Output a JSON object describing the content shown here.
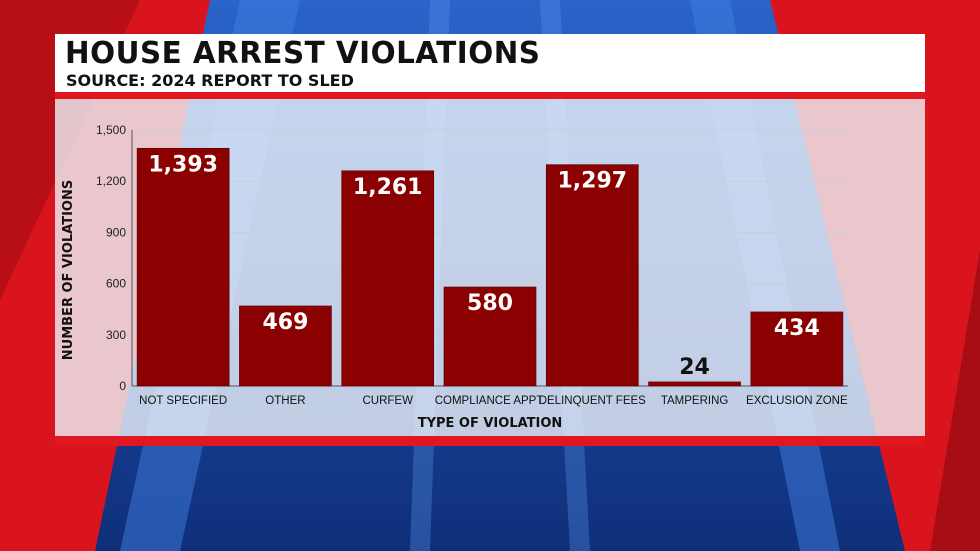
{
  "header": {
    "title": "HOUSE ARREST VIOLATIONS",
    "subtitle": "SOURCE: 2024 REPORT TO SLED"
  },
  "colors": {
    "bar": "#8b0000",
    "accent_red": "#e1161f",
    "background_blue": "#1d4aa8",
    "gridline": "#c9ced8"
  },
  "chart_data": {
    "type": "bar",
    "title": "HOUSE ARREST VIOLATIONS",
    "subtitle": "SOURCE: 2024 REPORT TO SLED",
    "xlabel": "TYPE OF VIOLATION",
    "ylabel": "NUMBER OF VIOLATIONS",
    "categories": [
      "NOT SPECIFIED",
      "OTHER",
      "CURFEW",
      "COMPLIANCE APPT.",
      "DELINQUENT FEES",
      "TAMPERING",
      "EXCLUSION ZONE"
    ],
    "values": [
      1393,
      469,
      1261,
      580,
      1297,
      24,
      434
    ],
    "value_labels": [
      "1,393",
      "469",
      "1,261",
      "580",
      "1,297",
      "24",
      "434"
    ],
    "ylim": [
      0,
      1500
    ],
    "yticks": [
      0,
      300,
      600,
      900,
      1200,
      1500
    ],
    "ytick_labels": [
      "0",
      "300",
      "600",
      "900",
      "1,200",
      "1,500"
    ],
    "grid": true,
    "legend": "none"
  }
}
